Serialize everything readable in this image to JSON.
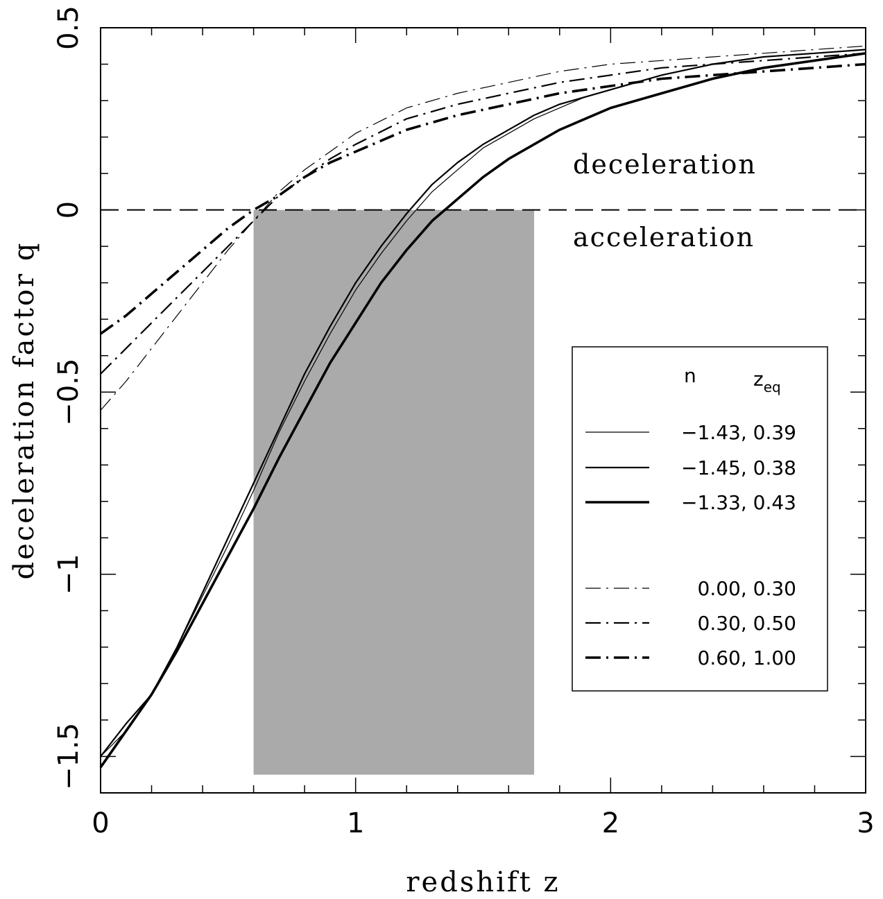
{
  "chart_data": {
    "type": "line",
    "xlabel": "redshift z",
    "ylabel": "deceleration factor q",
    "xlim": [
      0,
      3
    ],
    "ylim": [
      -1.6,
      0.5
    ],
    "x_ticks": [
      0,
      1,
      2,
      3
    ],
    "y_ticks": [
      0.5,
      0,
      -0.5,
      -1,
      -1.5
    ],
    "x_tick_labels": [
      "0",
      "1",
      "2",
      "3"
    ],
    "y_tick_labels": [
      "0.5",
      "0",
      "−0.5",
      "−1",
      "−1.5"
    ],
    "grid": false,
    "reference_line": {
      "y": 0,
      "style": "dashed"
    },
    "shaded_region": {
      "x": [
        0.6,
        1.7
      ],
      "y": [
        -1.55,
        0
      ],
      "color": "#aaaaaa"
    },
    "annotations": [
      {
        "text": "deceleration",
        "x": 1.9,
        "y": 0.1
      },
      {
        "text": "acceleration",
        "x": 1.9,
        "y": -0.1
      }
    ],
    "legend": {
      "position": "right",
      "header_n": "n",
      "header_z": "z",
      "header_z_sub": "eq"
    },
    "series": [
      {
        "name": "−1.43, 0.39",
        "style": "solid",
        "weight": "thin",
        "x": [
          0,
          0.1,
          0.2,
          0.3,
          0.4,
          0.5,
          0.6,
          0.7,
          0.8,
          0.9,
          1.0,
          1.1,
          1.2,
          1.3,
          1.4,
          1.5,
          1.6,
          1.7,
          1.8,
          1.9,
          2.0,
          2.2,
          2.4,
          2.6,
          2.8,
          3.0
        ],
        "y": [
          -1.5,
          -1.43,
          -1.33,
          -1.2,
          -1.06,
          -0.92,
          -0.77,
          -0.61,
          -0.47,
          -0.34,
          -0.22,
          -0.12,
          -0.03,
          0.05,
          0.11,
          0.17,
          0.21,
          0.25,
          0.28,
          0.31,
          0.33,
          0.37,
          0.4,
          0.42,
          0.43,
          0.44
        ]
      },
      {
        "name": "−1.45, 0.38",
        "style": "solid",
        "weight": "medium",
        "x": [
          0,
          0.1,
          0.2,
          0.3,
          0.4,
          0.5,
          0.6,
          0.7,
          0.8,
          0.9,
          1.0,
          1.1,
          1.2,
          1.3,
          1.4,
          1.5,
          1.6,
          1.7,
          1.8,
          1.9,
          2.0,
          2.2,
          2.4,
          2.6,
          2.8,
          3.0
        ],
        "y": [
          -1.5,
          -1.41,
          -1.33,
          -1.2,
          -1.05,
          -0.9,
          -0.75,
          -0.6,
          -0.45,
          -0.32,
          -0.2,
          -0.1,
          -0.01,
          0.07,
          0.13,
          0.18,
          0.22,
          0.26,
          0.29,
          0.31,
          0.33,
          0.37,
          0.4,
          0.42,
          0.43,
          0.44
        ]
      },
      {
        "name": "−1.33, 0.43",
        "style": "solid",
        "weight": "thick",
        "x": [
          0,
          0.1,
          0.2,
          0.3,
          0.4,
          0.5,
          0.6,
          0.7,
          0.8,
          0.9,
          1.0,
          1.1,
          1.2,
          1.3,
          1.4,
          1.5,
          1.6,
          1.7,
          1.8,
          1.9,
          2.0,
          2.2,
          2.4,
          2.6,
          2.8,
          3.0
        ],
        "y": [
          -1.53,
          -1.43,
          -1.33,
          -1.21,
          -1.08,
          -0.95,
          -0.82,
          -0.68,
          -0.55,
          -0.42,
          -0.31,
          -0.2,
          -0.11,
          -0.03,
          0.03,
          0.09,
          0.14,
          0.18,
          0.22,
          0.25,
          0.28,
          0.32,
          0.36,
          0.39,
          0.41,
          0.43
        ]
      },
      {
        "name": "0.00, 0.30",
        "style": "dashdot",
        "weight": "thin",
        "x": [
          0,
          0.1,
          0.2,
          0.3,
          0.4,
          0.5,
          0.6,
          0.7,
          0.8,
          0.9,
          1.0,
          1.2,
          1.4,
          1.6,
          1.8,
          2.0,
          2.2,
          2.4,
          2.6,
          2.8,
          3.0
        ],
        "y": [
          -0.55,
          -0.47,
          -0.38,
          -0.29,
          -0.2,
          -0.11,
          -0.03,
          0.05,
          0.11,
          0.16,
          0.21,
          0.28,
          0.32,
          0.35,
          0.38,
          0.4,
          0.41,
          0.42,
          0.43,
          0.44,
          0.45
        ]
      },
      {
        "name": "0.30, 0.50",
        "style": "dashdot",
        "weight": "medium",
        "x": [
          0,
          0.1,
          0.2,
          0.3,
          0.4,
          0.5,
          0.6,
          0.7,
          0.8,
          0.9,
          1.0,
          1.2,
          1.4,
          1.6,
          1.8,
          2.0,
          2.2,
          2.4,
          2.6,
          2.8,
          3.0
        ],
        "y": [
          -0.45,
          -0.38,
          -0.31,
          -0.24,
          -0.17,
          -0.1,
          -0.03,
          0.04,
          0.09,
          0.14,
          0.18,
          0.25,
          0.29,
          0.32,
          0.35,
          0.37,
          0.39,
          0.4,
          0.41,
          0.42,
          0.43
        ]
      },
      {
        "name": "0.60, 1.00",
        "style": "dashdot",
        "weight": "thick",
        "x": [
          0,
          0.1,
          0.2,
          0.3,
          0.4,
          0.5,
          0.6,
          0.7,
          0.8,
          0.9,
          1.0,
          1.2,
          1.4,
          1.6,
          1.8,
          2.0,
          2.2,
          2.4,
          2.6,
          2.8,
          3.0
        ],
        "y": [
          -0.34,
          -0.29,
          -0.23,
          -0.17,
          -0.11,
          -0.05,
          0.0,
          0.04,
          0.09,
          0.13,
          0.16,
          0.22,
          0.26,
          0.29,
          0.32,
          0.34,
          0.36,
          0.37,
          0.38,
          0.39,
          0.4
        ]
      }
    ]
  }
}
